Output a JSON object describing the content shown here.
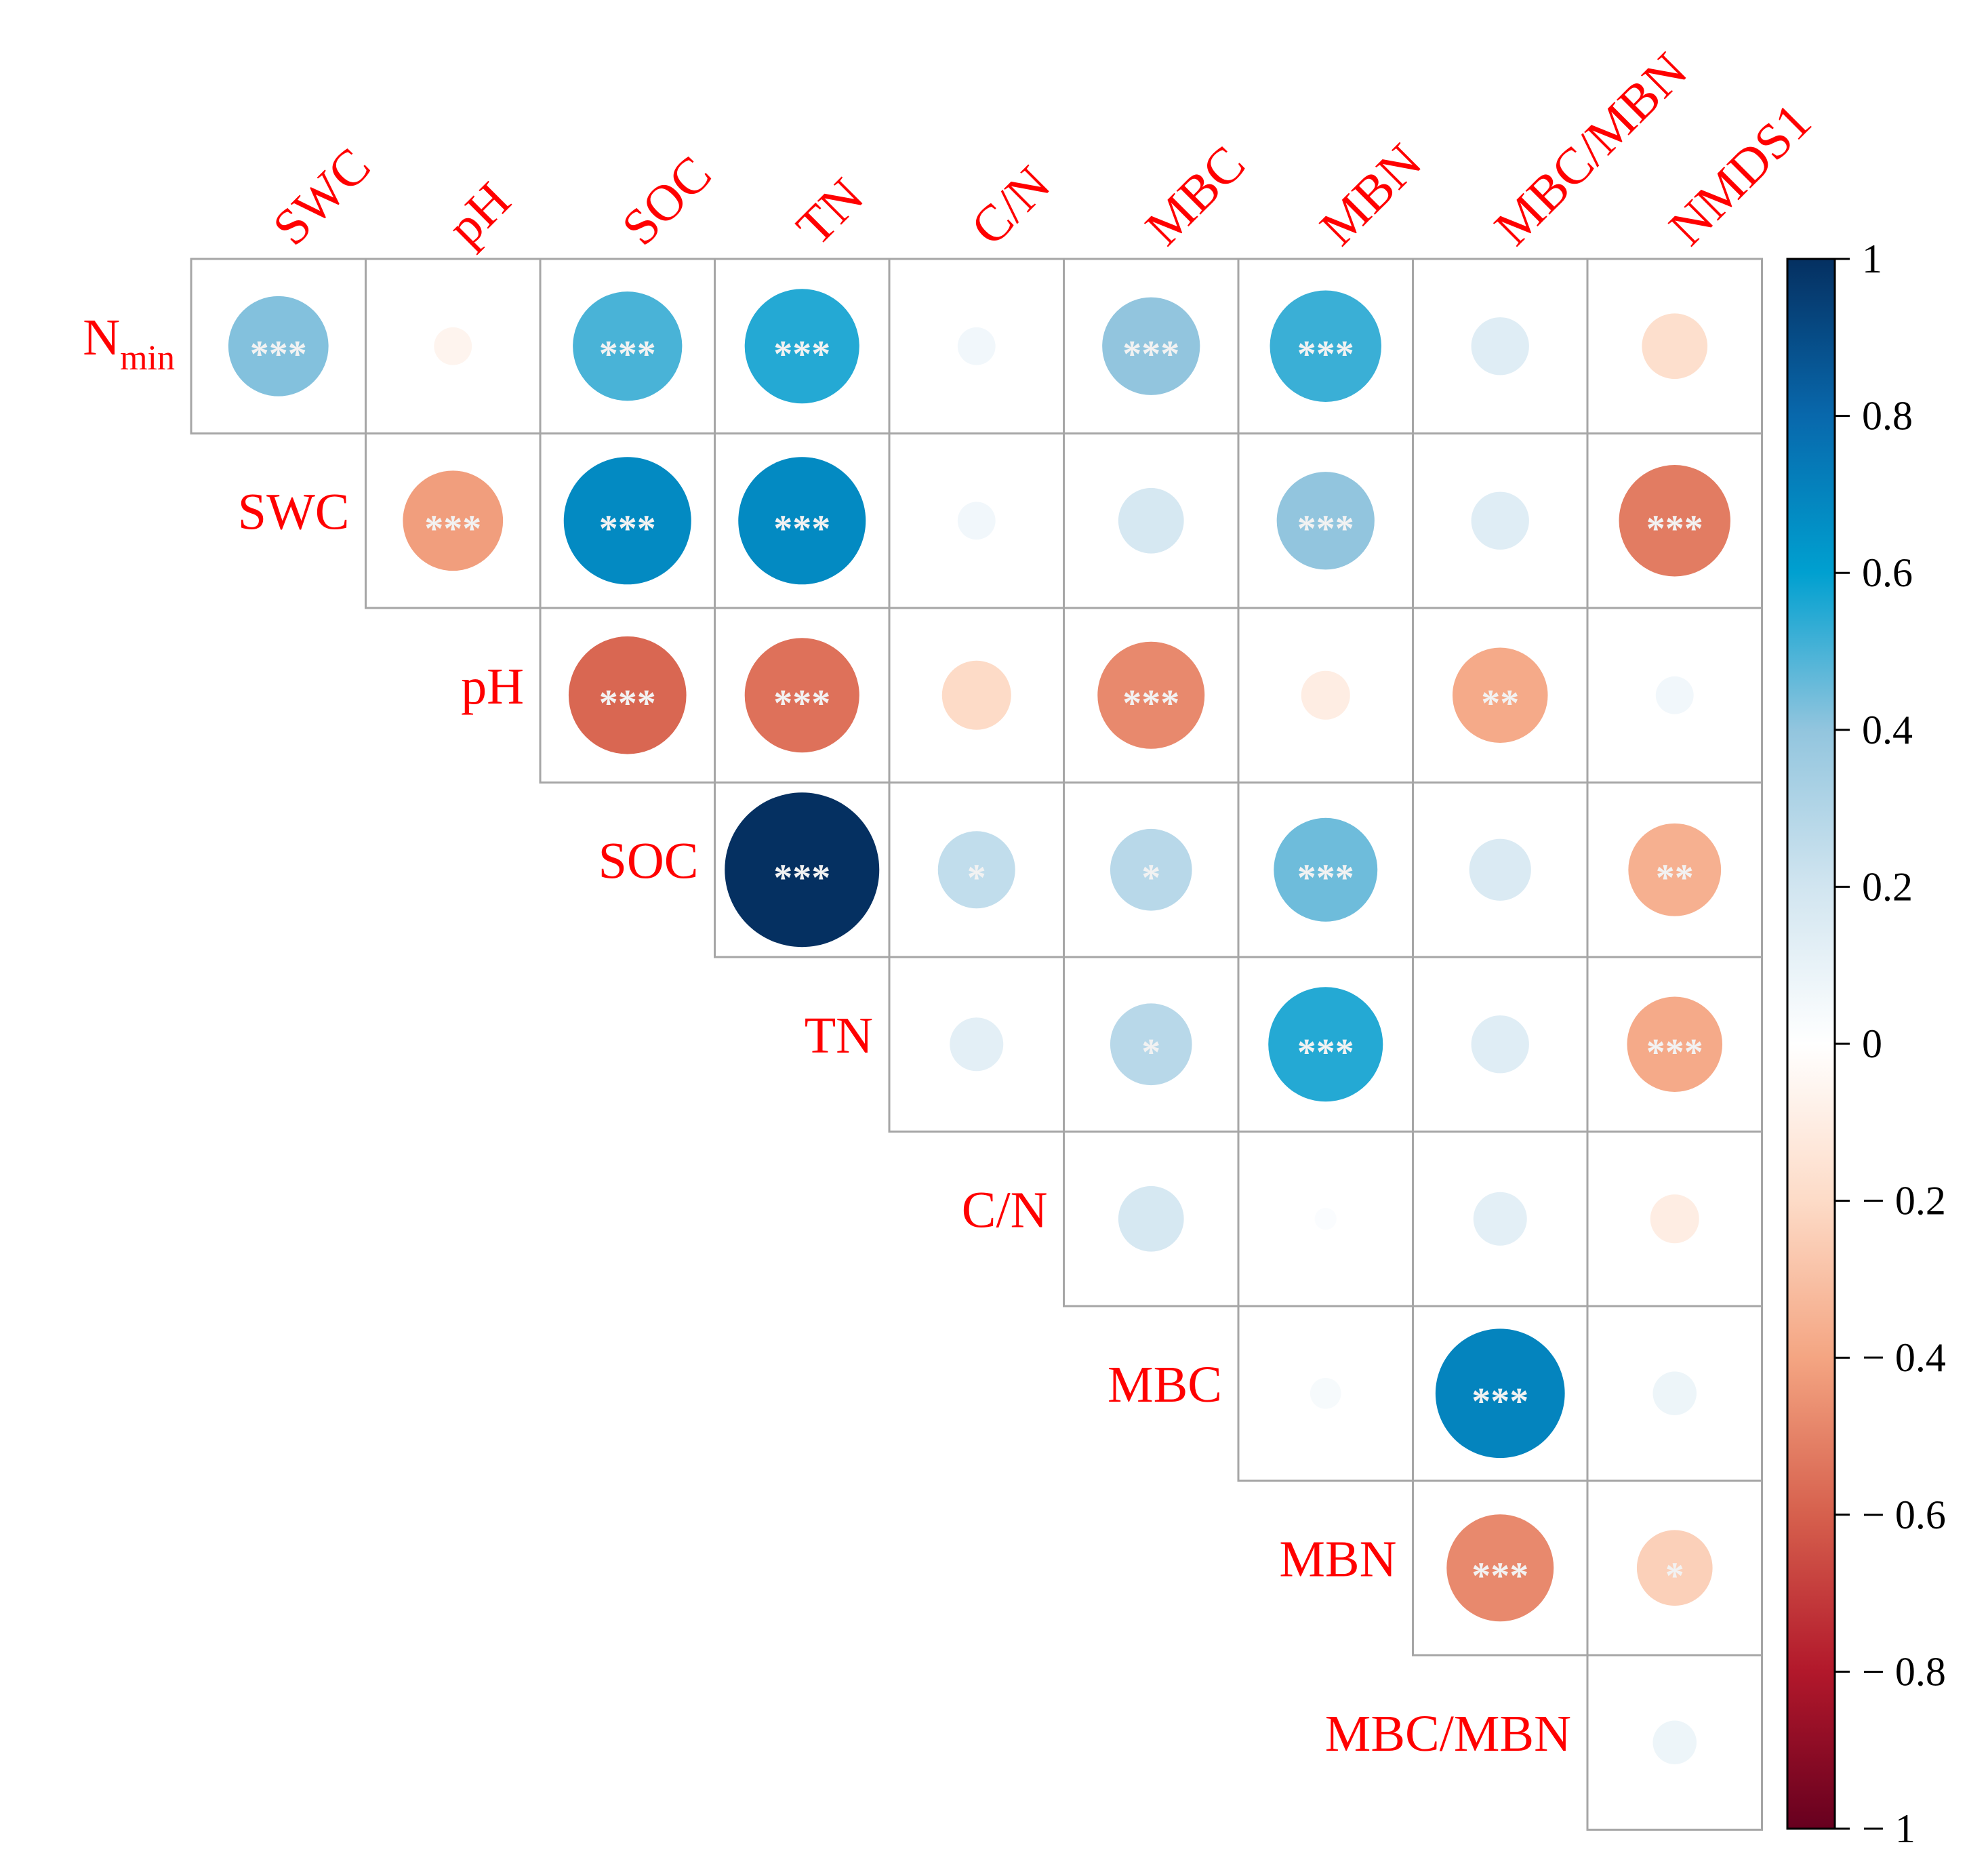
{
  "chart_data": {
    "type": "heatmap",
    "variant": "upper-triangle correlation matrix with circle markers",
    "row_labels": [
      {
        "text": "N",
        "sub": "min"
      },
      {
        "text": "SWC"
      },
      {
        "text": "pH"
      },
      {
        "text": "SOC"
      },
      {
        "text": "TN"
      },
      {
        "text": "C/N"
      },
      {
        "text": "MBC"
      },
      {
        "text": "MBN"
      },
      {
        "text": "MBC/MBN"
      }
    ],
    "col_labels": [
      "SWC",
      "pH",
      "SOC",
      "TN",
      "C/N",
      "MBC",
      "MBN",
      "MBC/MBN",
      "NMDS1"
    ],
    "matrix": [
      [
        0.42,
        -0.06,
        0.5,
        0.55,
        0.06,
        0.4,
        0.52,
        0.14,
        -0.18
      ],
      [
        null,
        -0.42,
        0.68,
        0.68,
        0.06,
        0.18,
        0.4,
        0.14,
        -0.52
      ],
      [
        null,
        null,
        -0.58,
        -0.55,
        -0.2,
        -0.48,
        -0.1,
        -0.38,
        0.06
      ],
      [
        null,
        null,
        null,
        1.0,
        0.25,
        0.28,
        0.45,
        0.16,
        -0.36
      ],
      [
        null,
        null,
        null,
        null,
        0.12,
        0.28,
        0.55,
        0.14,
        -0.38
      ],
      [
        null,
        null,
        null,
        null,
        null,
        0.18,
        0.02,
        0.12,
        -0.1
      ],
      [
        null,
        null,
        null,
        null,
        null,
        null,
        0.04,
        0.7,
        0.08
      ],
      [
        null,
        null,
        null,
        null,
        null,
        null,
        null,
        -0.48,
        -0.24
      ],
      [
        null,
        null,
        null,
        null,
        null,
        null,
        null,
        null,
        0.08
      ]
    ],
    "significance": [
      [
        "***",
        "",
        "***",
        "***",
        "",
        "***",
        "***",
        "",
        ""
      ],
      [
        "",
        "***",
        "***",
        "***",
        "",
        "",
        "***",
        "",
        "***"
      ],
      [
        "",
        "",
        "***",
        "***",
        "",
        "***",
        "",
        "**",
        ""
      ],
      [
        "",
        "",
        "",
        "***",
        "*",
        "*",
        "***",
        "",
        "**"
      ],
      [
        "",
        "",
        "",
        "",
        "",
        "*",
        "***",
        "",
        "***"
      ],
      [
        "",
        "",
        "",
        "",
        "",
        "",
        "",
        "",
        ""
      ],
      [
        "",
        "",
        "",
        "",
        "",
        "",
        "",
        "***",
        ""
      ],
      [
        "",
        "",
        "",
        "",
        "",
        "",
        "",
        "***",
        "*"
      ],
      [
        "",
        "",
        "",
        "",
        "",
        "",
        "",
        "",
        ""
      ]
    ],
    "color_scale": {
      "min": -1,
      "max": 1,
      "stops": [
        {
          "v": -1,
          "color": "#67001f"
        },
        {
          "v": -0.8,
          "color": "#b2182b"
        },
        {
          "v": -0.6,
          "color": "#d6604d"
        },
        {
          "v": -0.4,
          "color": "#f4a582"
        },
        {
          "v": -0.2,
          "color": "#fddbc7"
        },
        {
          "v": 0,
          "color": "#ffffff"
        },
        {
          "v": 0.2,
          "color": "#d1e5f0"
        },
        {
          "v": 0.4,
          "color": "#92c5de"
        },
        {
          "v": 0.6,
          "color": "#00a0d0"
        },
        {
          "v": 0.8,
          "color": "#0868ac"
        },
        {
          "v": 1,
          "color": "#053061"
        }
      ],
      "ticks": [
        1,
        0.8,
        0.6,
        0.4,
        0.2,
        0,
        -0.2,
        -0.4,
        -0.6,
        -0.8,
        -1
      ],
      "tick_labels": [
        "1",
        "0.8",
        "0.6",
        "0.4",
        "0.2",
        "0",
        "− 0.2",
        "− 0.4",
        "− 0.6",
        "− 0.8",
        "− 1"
      ]
    },
    "label_color": "#ff0000",
    "grid_color": "#a6a6a6",
    "significance_color": "#f2f2f2"
  }
}
